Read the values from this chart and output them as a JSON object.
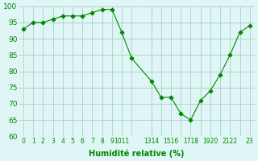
{
  "x": [
    0,
    1,
    2,
    3,
    4,
    5,
    6,
    7,
    8,
    9,
    10,
    11,
    13,
    14,
    15,
    16,
    17,
    18,
    19,
    20,
    21,
    22,
    23
  ],
  "y": [
    93,
    95,
    95,
    96,
    97,
    97,
    97,
    98,
    99,
    99,
    92,
    84,
    77,
    72,
    72,
    67,
    65,
    71,
    74,
    79,
    85,
    92,
    94
  ],
  "line_color": "#008800",
  "marker": "D",
  "bg_color": "#e0f5f5",
  "grid_color": "#99ccbb",
  "xlabel": "Humidité relative (%)",
  "xlabel_color": "#008800",
  "tick_color": "#008800",
  "ylim": [
    60,
    100
  ],
  "yticks": [
    60,
    65,
    70,
    75,
    80,
    85,
    90,
    95,
    100
  ],
  "figsize": [
    3.2,
    2.0
  ],
  "dpi": 100,
  "xtick_positions": [
    0,
    1,
    2,
    3,
    4,
    5,
    6,
    7,
    8,
    9,
    10,
    11,
    13,
    14,
    15,
    16,
    17,
    18,
    19,
    20,
    21,
    22,
    23
  ],
  "xtick_labels": [
    "0",
    "1",
    "2",
    "3",
    "4",
    "5",
    "6",
    "7",
    "8",
    "9",
    "1011",
    "",
    "1314",
    "",
    "1516",
    "",
    "1718",
    "",
    "1920",
    "",
    "2122",
    "",
    "23"
  ]
}
